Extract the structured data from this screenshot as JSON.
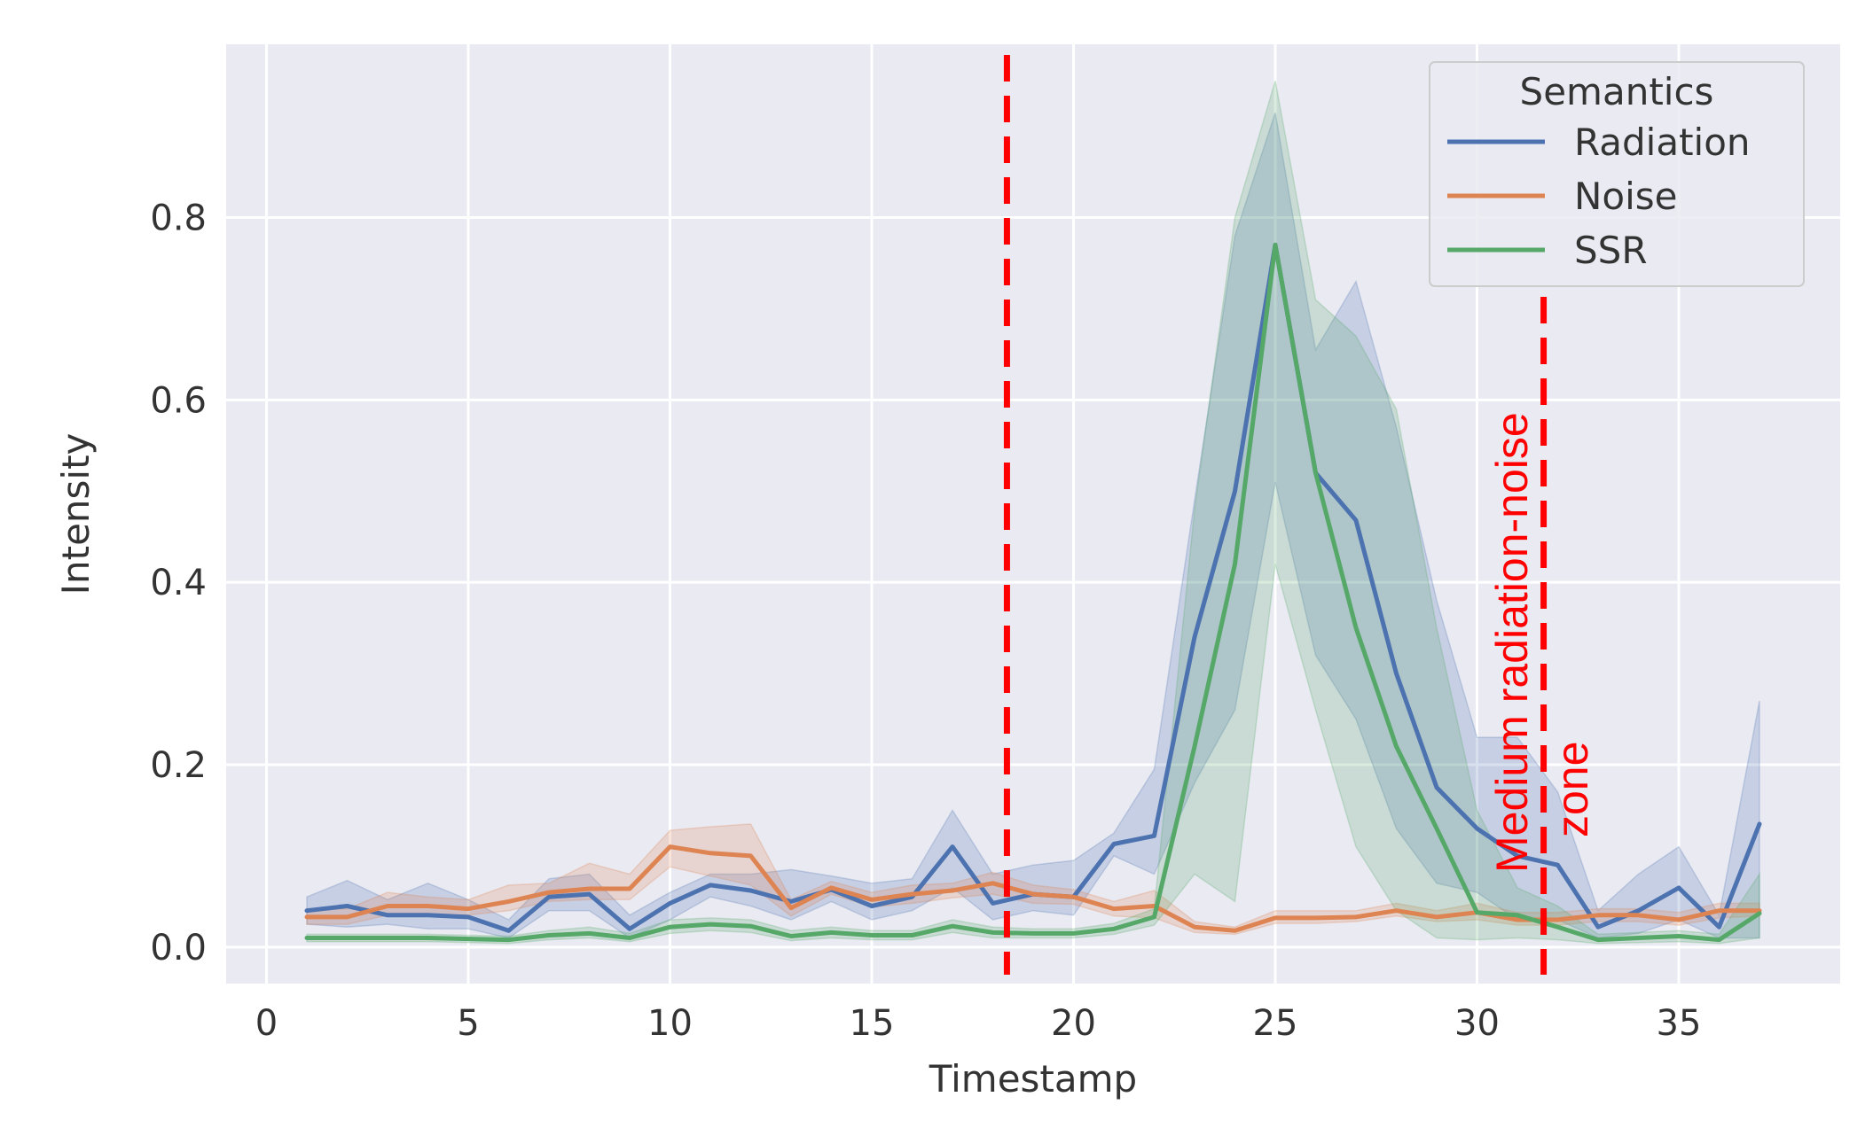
{
  "chart_data": {
    "type": "line",
    "xlabel": "Timestamp",
    "ylabel": "Intensity",
    "xlim": [
      -1,
      39
    ],
    "ylim": [
      -0.04,
      0.99
    ],
    "xticks": [
      0,
      5,
      10,
      15,
      20,
      25,
      30,
      35
    ],
    "xtick_labels": [
      "0",
      "5",
      "10",
      "15",
      "20",
      "25",
      "30",
      "35"
    ],
    "yticks": [
      0.0,
      0.2,
      0.4,
      0.6,
      0.8
    ],
    "ytick_labels": [
      "0.0",
      "0.2",
      "0.4",
      "0.6",
      "0.8"
    ],
    "grid": true,
    "background": "#eaeaf2",
    "legend": {
      "title": "Semantics",
      "position": "top-right"
    },
    "x": [
      1,
      2,
      3,
      4,
      5,
      6,
      7,
      8,
      9,
      10,
      11,
      12,
      13,
      14,
      15,
      16,
      17,
      18,
      19,
      20,
      21,
      22,
      23,
      24,
      25,
      26,
      27,
      28,
      29,
      30,
      31,
      32,
      33,
      34,
      35,
      36,
      37
    ],
    "series": [
      {
        "name": "Radiation",
        "color": "#4c72b0",
        "values": [
          0.04,
          0.045,
          0.035,
          0.035,
          0.033,
          0.018,
          0.055,
          0.058,
          0.02,
          0.048,
          0.068,
          0.062,
          0.05,
          0.063,
          0.045,
          0.055,
          0.11,
          0.048,
          0.058,
          0.055,
          0.113,
          0.122,
          0.34,
          0.5,
          0.77,
          0.52,
          0.468,
          0.3,
          0.175,
          0.13,
          0.1,
          0.09,
          0.022,
          0.04,
          0.065,
          0.022,
          0.135
        ],
        "ci_upper": [
          0.055,
          0.073,
          0.052,
          0.07,
          0.052,
          0.03,
          0.075,
          0.08,
          0.035,
          0.06,
          0.08,
          0.08,
          0.085,
          0.078,
          0.07,
          0.075,
          0.15,
          0.08,
          0.09,
          0.095,
          0.125,
          0.195,
          0.49,
          0.78,
          0.915,
          0.655,
          0.73,
          0.57,
          0.38,
          0.23,
          0.23,
          0.17,
          0.04,
          0.08,
          0.11,
          0.035,
          0.27
        ],
        "ci_lower": [
          0.025,
          0.022,
          0.025,
          0.02,
          0.02,
          0.01,
          0.04,
          0.04,
          0.01,
          0.03,
          0.055,
          0.045,
          0.03,
          0.05,
          0.03,
          0.04,
          0.065,
          0.03,
          0.04,
          0.035,
          0.1,
          0.08,
          0.18,
          0.26,
          0.51,
          0.32,
          0.25,
          0.13,
          0.07,
          0.06,
          0.03,
          0.03,
          0.01,
          0.015,
          0.03,
          0.01,
          0.01
        ]
      },
      {
        "name": "Noise",
        "color": "#dd8452",
        "values": [
          0.033,
          0.033,
          0.045,
          0.045,
          0.042,
          0.05,
          0.06,
          0.064,
          0.064,
          0.11,
          0.103,
          0.1,
          0.043,
          0.065,
          0.052,
          0.058,
          0.062,
          0.07,
          0.058,
          0.055,
          0.042,
          0.045,
          0.022,
          0.018,
          0.032,
          0.032,
          0.033,
          0.04,
          0.033,
          0.038,
          0.03,
          0.03,
          0.035,
          0.035,
          0.03,
          0.04,
          0.04
        ],
        "ci_upper": [
          0.042,
          0.042,
          0.06,
          0.055,
          0.052,
          0.068,
          0.07,
          0.092,
          0.08,
          0.128,
          0.132,
          0.135,
          0.052,
          0.072,
          0.06,
          0.068,
          0.07,
          0.082,
          0.068,
          0.063,
          0.05,
          0.062,
          0.028,
          0.022,
          0.04,
          0.04,
          0.04,
          0.048,
          0.04,
          0.048,
          0.038,
          0.038,
          0.042,
          0.042,
          0.038,
          0.048,
          0.048
        ],
        "ci_lower": [
          0.025,
          0.025,
          0.035,
          0.035,
          0.035,
          0.04,
          0.05,
          0.052,
          0.052,
          0.088,
          0.078,
          0.068,
          0.034,
          0.058,
          0.044,
          0.048,
          0.054,
          0.058,
          0.048,
          0.047,
          0.034,
          0.032,
          0.016,
          0.014,
          0.026,
          0.026,
          0.028,
          0.034,
          0.028,
          0.03,
          0.024,
          0.024,
          0.028,
          0.028,
          0.024,
          0.032,
          0.034
        ]
      },
      {
        "name": "SSR",
        "color": "#55a868",
        "values": [
          0.01,
          0.01,
          0.01,
          0.01,
          0.009,
          0.008,
          0.013,
          0.015,
          0.01,
          0.022,
          0.025,
          0.023,
          0.012,
          0.016,
          0.013,
          0.013,
          0.023,
          0.016,
          0.015,
          0.015,
          0.02,
          0.033,
          0.22,
          0.42,
          0.77,
          0.52,
          0.35,
          0.22,
          0.13,
          0.038,
          0.035,
          0.022,
          0.008,
          0.01,
          0.012,
          0.008,
          0.037
        ],
        "ci_upper": [
          0.014,
          0.014,
          0.014,
          0.014,
          0.013,
          0.012,
          0.018,
          0.022,
          0.015,
          0.03,
          0.032,
          0.03,
          0.018,
          0.022,
          0.018,
          0.018,
          0.03,
          0.022,
          0.02,
          0.02,
          0.026,
          0.042,
          0.48,
          0.8,
          0.95,
          0.71,
          0.67,
          0.59,
          0.35,
          0.15,
          0.065,
          0.045,
          0.014,
          0.016,
          0.018,
          0.014,
          0.08
        ],
        "ci_lower": [
          0.006,
          0.006,
          0.006,
          0.006,
          0.005,
          0.004,
          0.008,
          0.01,
          0.006,
          0.015,
          0.018,
          0.016,
          0.007,
          0.01,
          0.008,
          0.008,
          0.016,
          0.01,
          0.01,
          0.01,
          0.014,
          0.024,
          0.08,
          0.05,
          0.42,
          0.26,
          0.11,
          0.04,
          0.01,
          0.008,
          0.01,
          0.008,
          0.004,
          0.005,
          0.006,
          0.004,
          0.01
        ]
      }
    ],
    "vlines": [
      {
        "x": 18.35,
        "color": "#ff0000",
        "style": "dashed"
      },
      {
        "x": 31.65,
        "color": "#ff0000",
        "style": "dashed"
      }
    ],
    "annotations": [
      {
        "text": "Medium radiation-noise zone",
        "lines": [
          "Medium radiation-noise",
          "zone"
        ],
        "color": "#ff0000",
        "rotation": -90
      }
    ]
  }
}
